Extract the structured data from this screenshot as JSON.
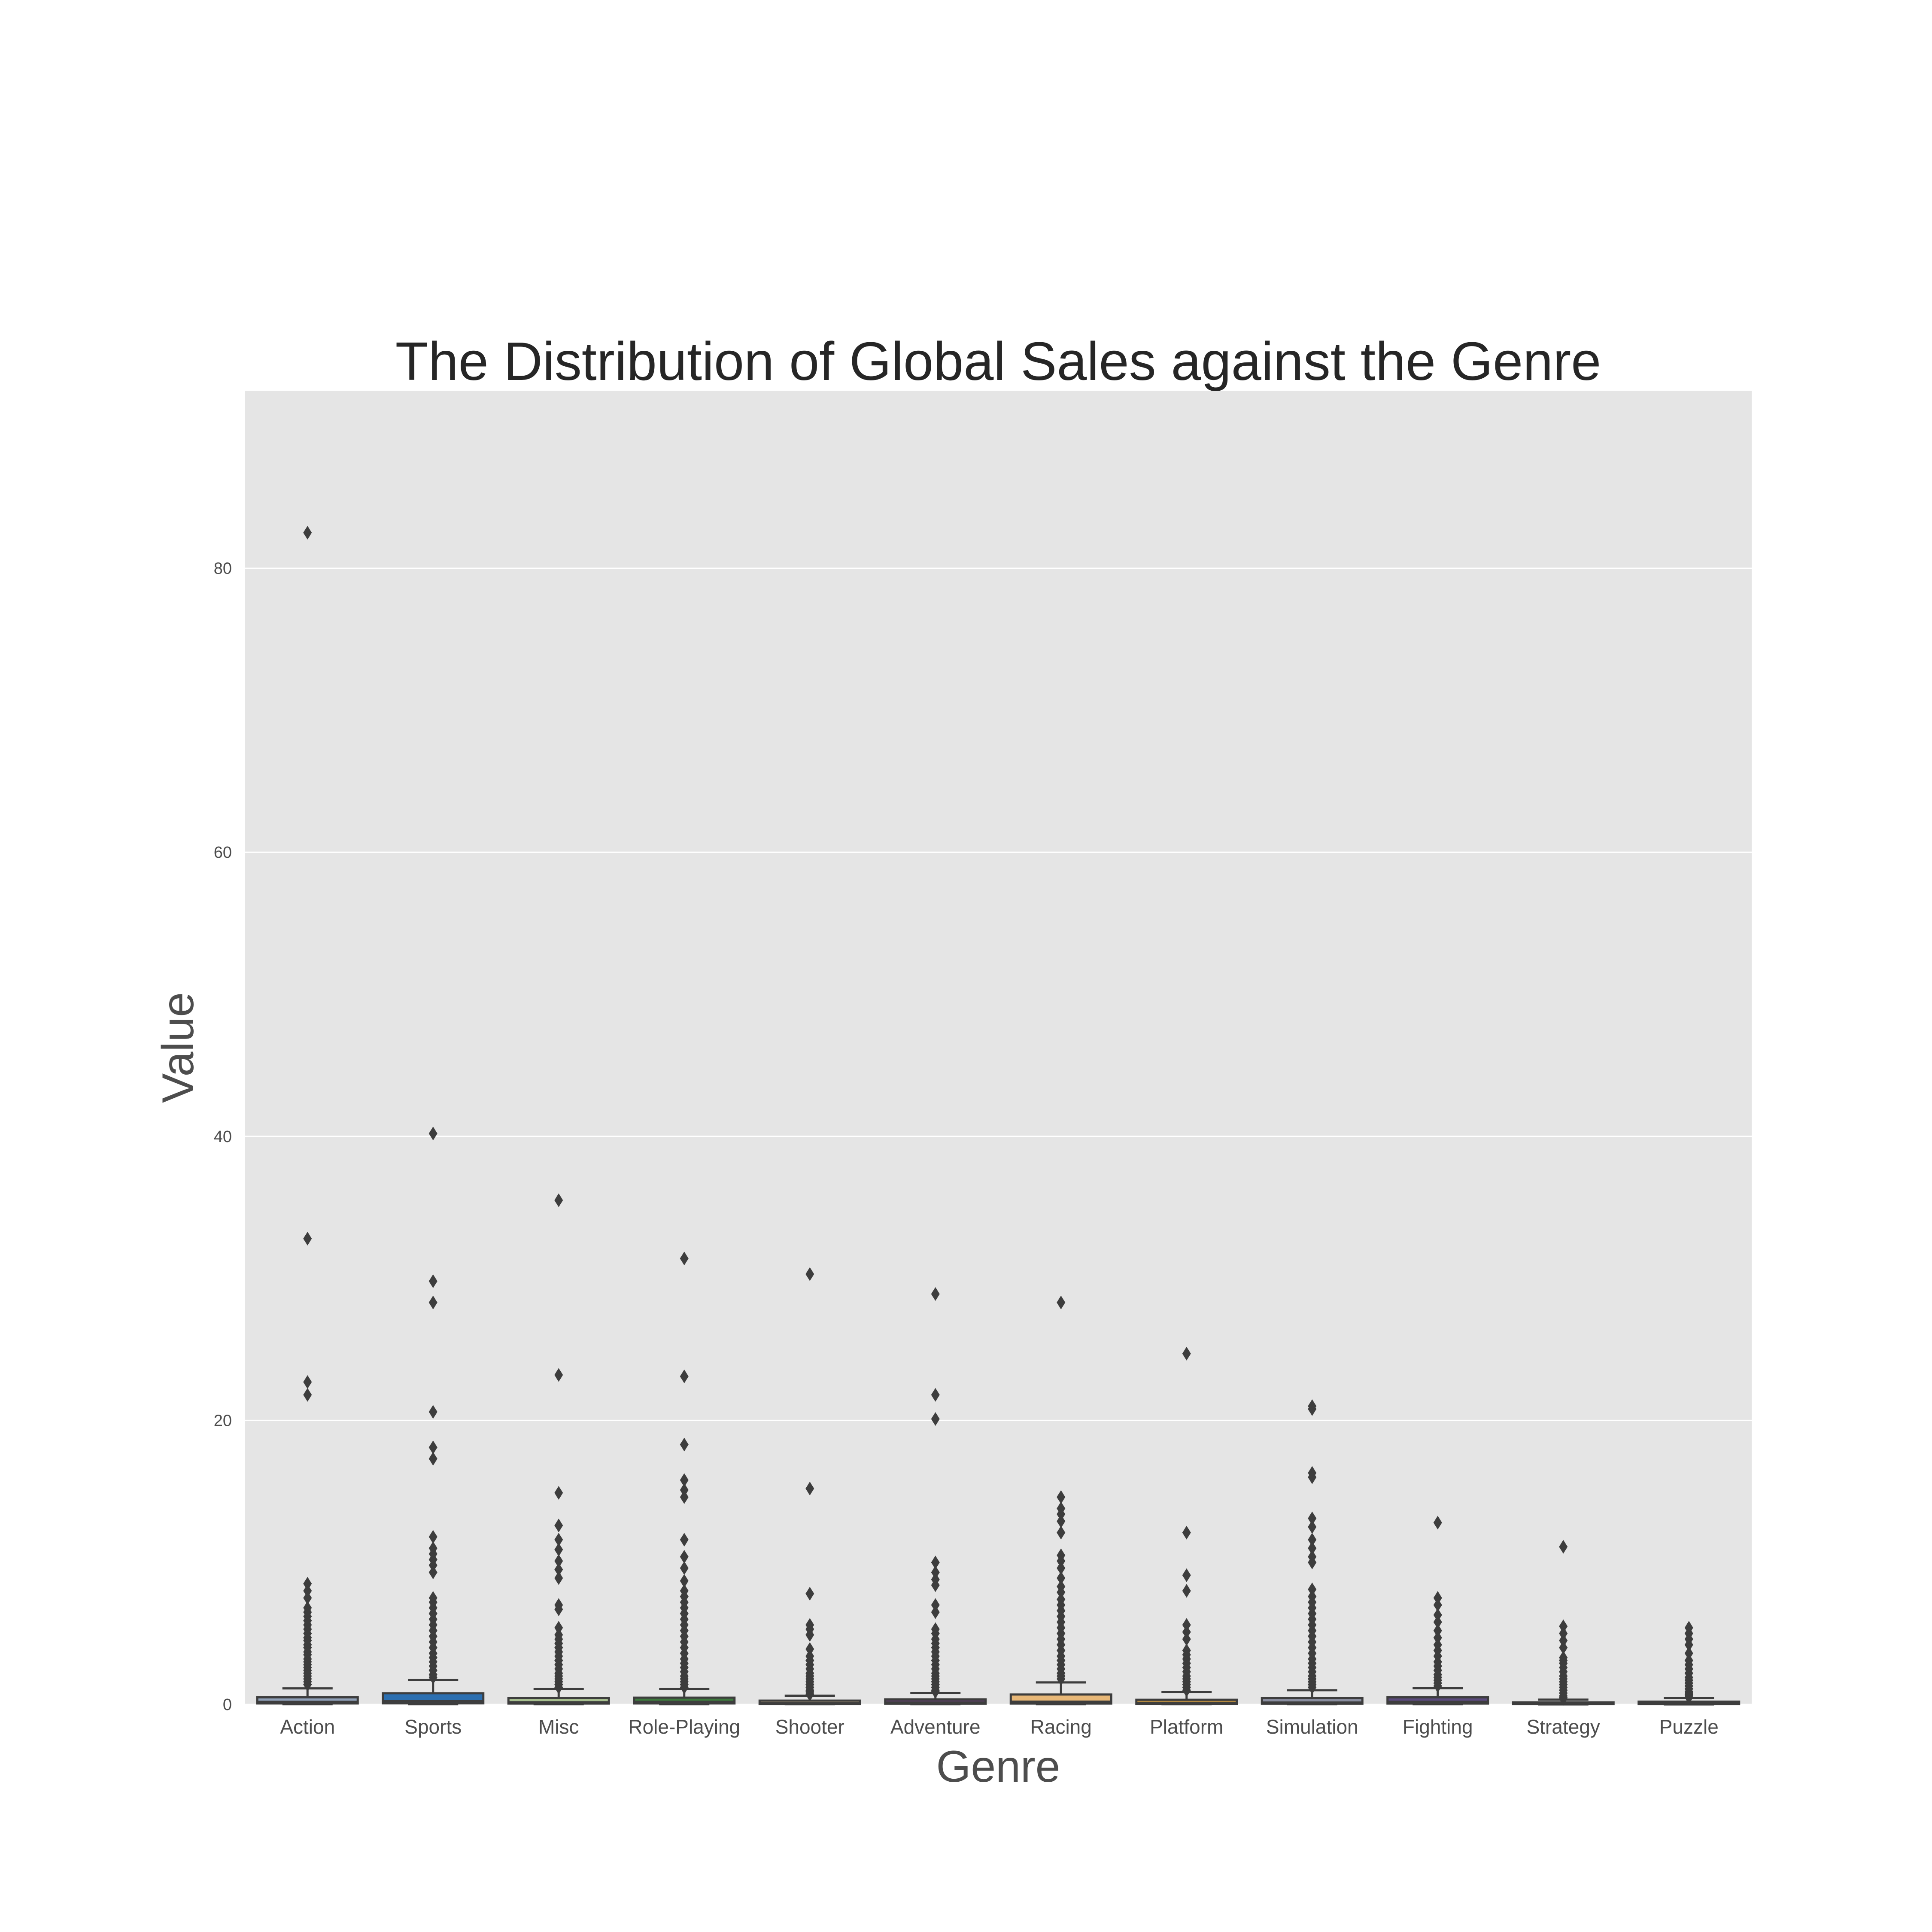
{
  "chart_data": {
    "type": "box",
    "title": "The Distribution of Global Sales against the Genre",
    "xlabel": "Genre",
    "ylabel": "Value",
    "ylim": [
      0,
      92.5
    ],
    "yticks": [
      0,
      20,
      40,
      60,
      80
    ],
    "grid": true,
    "legend": "none",
    "categories": [
      "Action",
      "Sports",
      "Misc",
      "Role-Playing",
      "Shooter",
      "Adventure",
      "Racing",
      "Platform",
      "Simulation",
      "Fighting",
      "Strategy",
      "Puzzle"
    ],
    "colors": [
      "#8fa0b8",
      "#2c6fb0",
      "#a8c090",
      "#3d7a3d",
      "#d0b890",
      "#5a3f62",
      "#e8b878",
      "#b58a40",
      "#8a8ea0",
      "#5b4a7d",
      "#3a4a60",
      "#4a5a6a"
    ],
    "boxes": [
      {
        "q1": 0.07,
        "median": 0.19,
        "q3": 0.5,
        "whisker_low": 0.01,
        "whisker_high": 1.13,
        "outliers": [
          82.5,
          32.8,
          22.7,
          21.8,
          8.5,
          8.0,
          7.5,
          6.8,
          6.5,
          6.2,
          5.9,
          5.6,
          5.3,
          5.0,
          4.7,
          4.5,
          4.2,
          4.0,
          3.7,
          3.5,
          3.2,
          3.0,
          2.8,
          2.6,
          2.4,
          2.2,
          2.0,
          1.8,
          1.6,
          1.4
        ]
      },
      {
        "q1": 0.08,
        "median": 0.25,
        "q3": 0.79,
        "whisker_low": 0.01,
        "whisker_high": 1.72,
        "outliers": [
          40.2,
          29.8,
          28.3,
          20.6,
          18.1,
          17.3,
          11.8,
          11.0,
          10.6,
          10.2,
          9.8,
          9.3,
          7.5,
          7.2,
          6.8,
          6.4,
          6.0,
          5.6,
          5.2,
          4.8,
          4.4,
          4.0,
          3.6,
          3.3,
          3.0,
          2.7,
          2.4,
          2.1,
          1.9
        ]
      },
      {
        "q1": 0.06,
        "median": 0.16,
        "q3": 0.46,
        "whisker_low": 0.01,
        "whisker_high": 1.1,
        "outliers": [
          35.5,
          23.2,
          14.9,
          12.6,
          11.6,
          10.9,
          10.1,
          9.5,
          8.9,
          7.0,
          6.7,
          5.4,
          4.9,
          4.6,
          4.3,
          4.0,
          3.7,
          3.4,
          3.1,
          2.8,
          2.5,
          2.2,
          2.0,
          1.8,
          1.6,
          1.4,
          1.2
        ]
      },
      {
        "q1": 0.07,
        "median": 0.19,
        "q3": 0.48,
        "whisker_low": 0.01,
        "whisker_high": 1.1,
        "outliers": [
          31.4,
          23.1,
          18.3,
          15.8,
          15.1,
          14.6,
          11.6,
          10.4,
          9.6,
          8.7,
          8.0,
          7.6,
          7.2,
          6.8,
          6.4,
          6.0,
          5.6,
          5.2,
          4.8,
          4.4,
          4.0,
          3.6,
          3.2,
          2.9,
          2.6,
          2.3,
          2.0,
          1.8,
          1.6,
          1.4,
          1.2
        ]
      },
      {
        "q1": 0.03,
        "median": 0.09,
        "q3": 0.27,
        "whisker_low": 0.01,
        "whisker_high": 0.62,
        "outliers": [
          30.3,
          15.2,
          7.8,
          5.6,
          5.3,
          4.9,
          3.9,
          3.4,
          3.1,
          2.8,
          2.5,
          2.2,
          2.0,
          1.8,
          1.6,
          1.4,
          1.2,
          1.0,
          0.9,
          0.8,
          0.7
        ]
      },
      {
        "q1": 0.05,
        "median": 0.13,
        "q3": 0.36,
        "whisker_low": 0.01,
        "whisker_high": 0.8,
        "outliers": [
          28.9,
          21.8,
          20.1,
          10.0,
          9.3,
          8.8,
          8.4,
          7.0,
          6.5,
          5.3,
          5.0,
          4.6,
          4.3,
          4.0,
          3.7,
          3.4,
          3.1,
          2.8,
          2.5,
          2.2,
          2.0,
          1.8,
          1.6,
          1.4,
          1.2,
          1.0,
          0.9
        ]
      },
      {
        "q1": 0.06,
        "median": 0.2,
        "q3": 0.7,
        "whisker_low": 0.01,
        "whisker_high": 1.55,
        "outliers": [
          28.3,
          14.6,
          13.8,
          13.4,
          12.9,
          12.1,
          10.5,
          10.1,
          9.6,
          8.9,
          8.3,
          7.9,
          7.4,
          7.0,
          6.6,
          6.2,
          5.8,
          5.4,
          5.0,
          4.6,
          4.2,
          3.8,
          3.4,
          3.1,
          2.8,
          2.5,
          2.2,
          2.0,
          1.8
        ]
      },
      {
        "q1": 0.04,
        "median": 0.1,
        "q3": 0.33,
        "whisker_low": 0.01,
        "whisker_high": 0.86,
        "outliers": [
          24.7,
          12.1,
          9.1,
          8.0,
          5.6,
          5.1,
          4.6,
          3.8,
          3.5,
          3.2,
          2.9,
          2.6,
          2.3,
          2.0,
          1.8,
          1.6,
          1.4,
          1.2,
          1.0
        ]
      },
      {
        "q1": 0.05,
        "median": 0.14,
        "q3": 0.45,
        "whisker_low": 0.01,
        "whisker_high": 1.0,
        "outliers": [
          21.0,
          20.8,
          16.3,
          16.0,
          13.1,
          12.5,
          11.6,
          11.0,
          10.4,
          10.0,
          8.1,
          7.6,
          7.2,
          6.8,
          6.4,
          6.0,
          5.6,
          5.2,
          4.8,
          4.4,
          4.0,
          3.6,
          3.2,
          2.9,
          2.6,
          2.3,
          2.0,
          1.8,
          1.6,
          1.4,
          1.2
        ]
      },
      {
        "q1": 0.06,
        "median": 0.19,
        "q3": 0.5,
        "whisker_low": 0.01,
        "whisker_high": 1.15,
        "outliers": [
          12.8,
          7.5,
          7.0,
          6.3,
          5.8,
          5.2,
          4.7,
          4.2,
          3.8,
          3.4,
          3.0,
          2.7,
          2.4,
          2.1,
          1.9,
          1.7,
          1.5,
          1.3
        ]
      },
      {
        "q1": 0.02,
        "median": 0.06,
        "q3": 0.15,
        "whisker_low": 0.0,
        "whisker_high": 0.34,
        "outliers": [
          11.1,
          5.5,
          5.0,
          4.5,
          4.0,
          3.3,
          3.1,
          2.9,
          2.6,
          2.3,
          2.0,
          1.8,
          1.6,
          1.4,
          1.2,
          1.0,
          0.8,
          0.6,
          0.5,
          0.4
        ]
      },
      {
        "q1": 0.02,
        "median": 0.06,
        "q3": 0.2,
        "whisker_low": 0.0,
        "whisker_high": 0.45,
        "outliers": [
          5.4,
          5.0,
          4.6,
          4.2,
          3.6,
          3.1,
          2.8,
          2.5,
          2.2,
          1.9,
          1.7,
          1.5,
          1.3,
          1.1,
          0.9,
          0.8,
          0.7,
          0.6,
          0.5
        ]
      }
    ]
  }
}
